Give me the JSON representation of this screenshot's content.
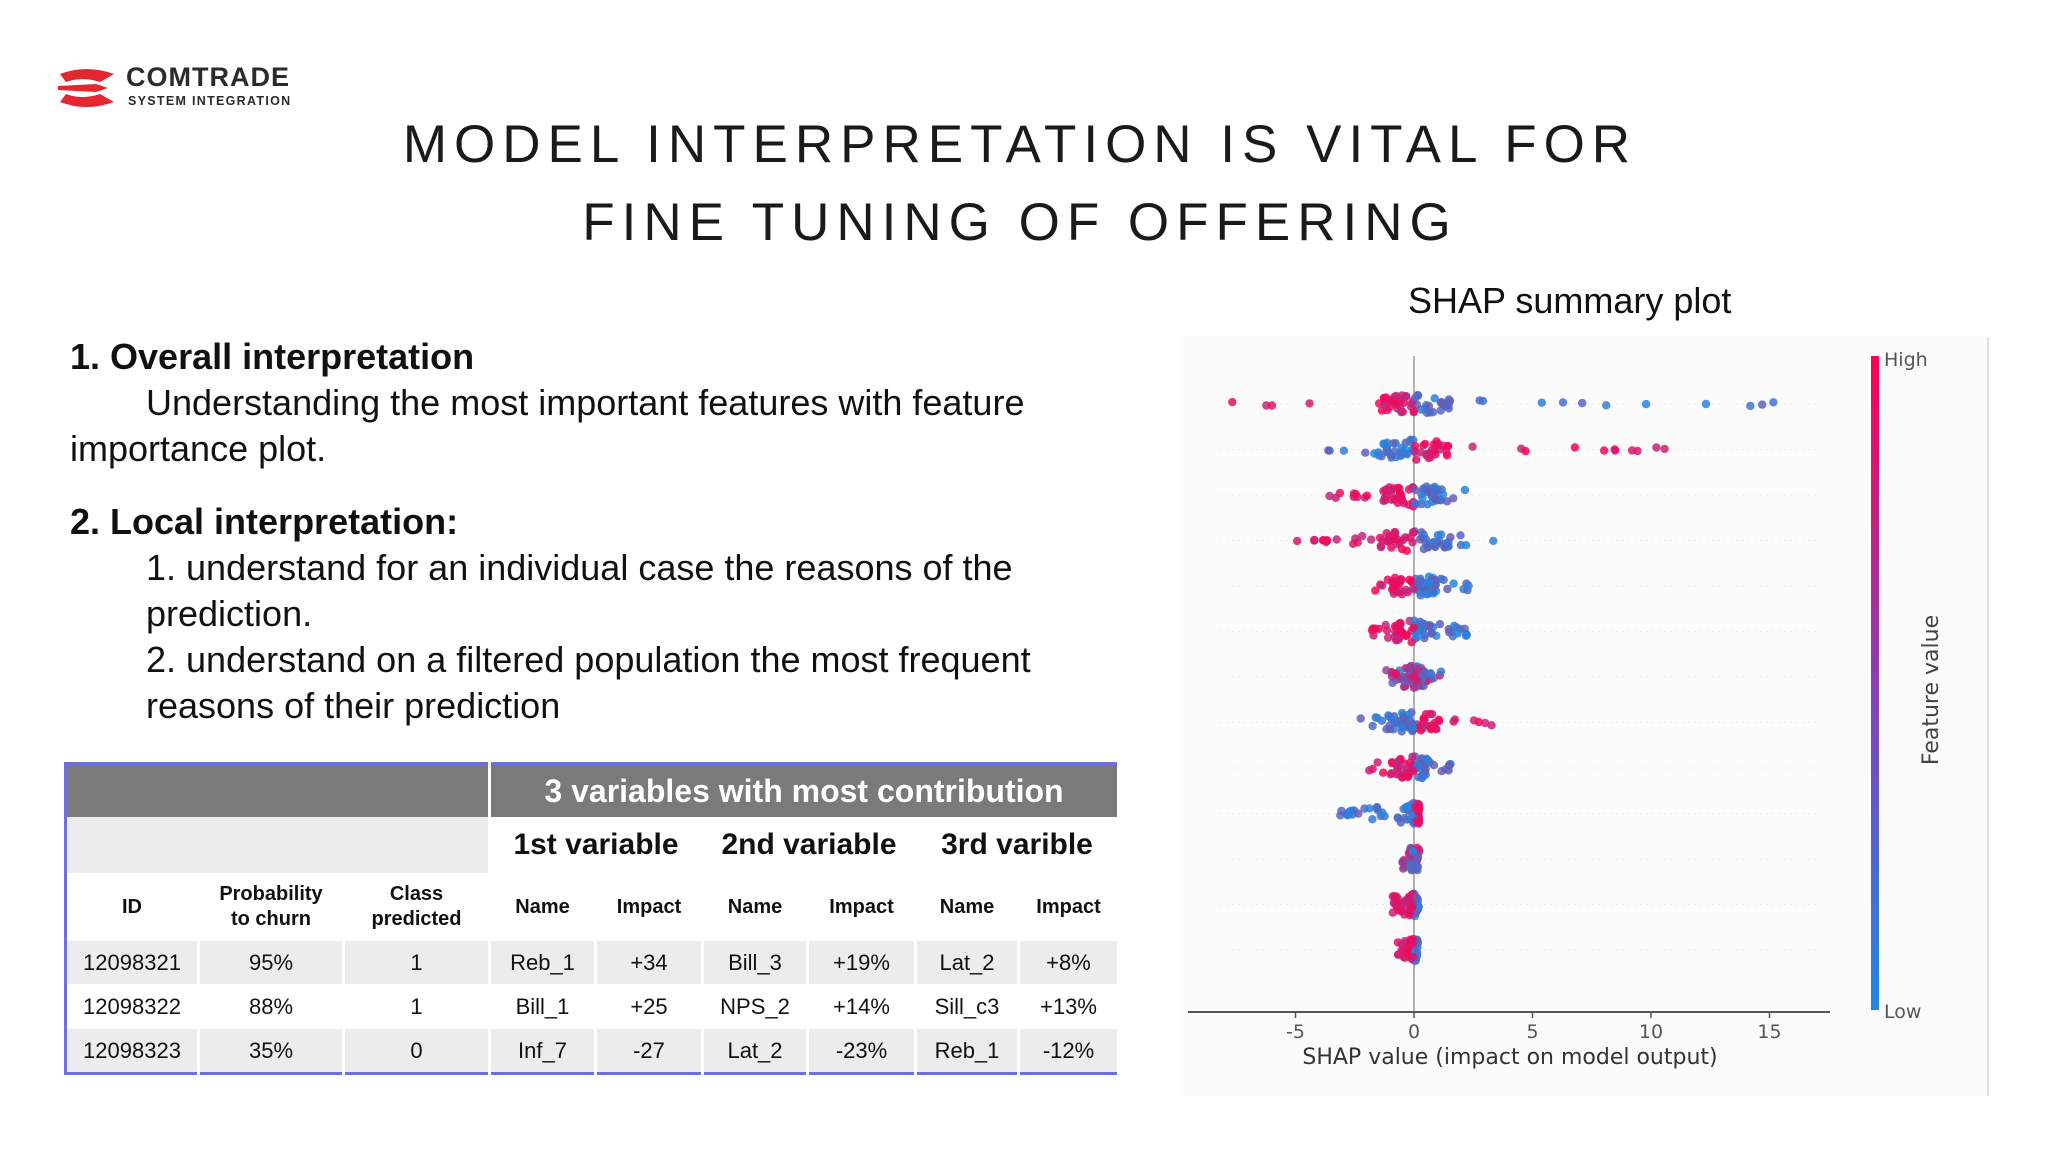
{
  "logo": {
    "name": "COMTRADE",
    "sub": "SYSTEM INTEGRATION"
  },
  "title": {
    "line1": "MODEL INTERPRETATION IS VITAL FOR",
    "line2": "FINE TUNING OF OFFERING"
  },
  "left": {
    "h1": "1.  Overall interpretation",
    "p1a": "Understanding the most important features with feature",
    "p1b": "importance plot.",
    "h2": "2. Local interpretation:",
    "p2a": "1. understand for an individual case the reasons of the",
    "p2b": "prediction.",
    "p2c": "2. understand on a filtered population the most frequent",
    "p2d": "reasons of their prediction"
  },
  "table": {
    "banner": "3 variables with most contribution",
    "vars": [
      "1st variable",
      "2nd variable",
      "3rd varible"
    ],
    "headers": {
      "id": "ID",
      "prob_l1": "Probability",
      "prob_l2": "to churn",
      "class_l1": "Class",
      "class_l2": "predicted",
      "name": "Name",
      "impact": "Impact"
    },
    "rows": [
      [
        "12098321",
        "95%",
        "1",
        "Reb_1",
        "+34",
        "Bill_3",
        "+19%",
        "Lat_2",
        "+8%"
      ],
      [
        "12098322",
        "88%",
        "1",
        "Bill_1",
        "+25",
        "NPS_2",
        "+14%",
        "Sill_c3",
        "+13%"
      ],
      [
        "12098323",
        "35%",
        "0",
        "Inf_7",
        "-27",
        "Lat_2",
        "-23%",
        "Reb_1",
        "-12%"
      ]
    ]
  },
  "plot": {
    "caption": "SHAP summary plot",
    "colorbar_high": "High",
    "colorbar_low": "Low",
    "colorbar_label": "Feature value",
    "colors": {
      "high": "#ff0052",
      "low": "#1e88e5"
    }
  },
  "chart_data": {
    "type": "scatter",
    "title": "SHAP summary plot",
    "xlabel": "SHAP value (impact on model output)",
    "ylabel": "",
    "xlim": [
      -9.5,
      17.5
    ],
    "xticks": [
      -5,
      0,
      5,
      10,
      15
    ],
    "xtick_labels": [
      "-5",
      "0",
      "5",
      "10",
      "15"
    ],
    "series": [
      {
        "row": 1,
        "spread": [
          -8.2,
          16.5
        ],
        "high_side": "negative"
      },
      {
        "row": 2,
        "spread": [
          -3.8,
          10.8
        ],
        "high_side": "positive"
      },
      {
        "row": 3,
        "spread": [
          -3.7,
          2.6
        ],
        "high_side": "negative"
      },
      {
        "row": 4,
        "spread": [
          -5.8,
          4.6
        ],
        "high_side": "negative"
      },
      {
        "row": 5,
        "spread": [
          -2.2,
          2.5
        ],
        "high_side": "negative"
      },
      {
        "row": 6,
        "spread": [
          -1.8,
          2.3
        ],
        "high_side": "negative"
      },
      {
        "row": 7,
        "spread": [
          -1.2,
          1.2
        ],
        "high_side": "mixed"
      },
      {
        "row": 8,
        "spread": [
          -2.3,
          3.6
        ],
        "high_side": "positive"
      },
      {
        "row": 9,
        "spread": [
          -2.0,
          1.6
        ],
        "high_side": "negative"
      },
      {
        "row": 10,
        "spread": [
          -3.2,
          0.2
        ],
        "high_side": "positive"
      },
      {
        "row": 11,
        "spread": [
          -0.5,
          0.3
        ],
        "high_side": "mixed"
      },
      {
        "row": 12,
        "spread": [
          -0.9,
          0.2
        ],
        "high_side": "negative"
      },
      {
        "row": 13,
        "spread": [
          -0.7,
          0.2
        ],
        "high_side": "negative"
      }
    ],
    "colorbar": {
      "high": "High",
      "low": "Low",
      "label": "Feature value"
    }
  }
}
